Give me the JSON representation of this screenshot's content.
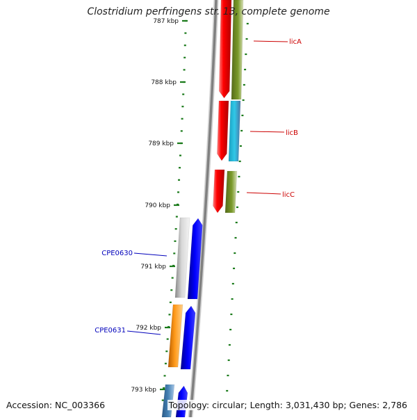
{
  "title": "Clostridium perfringens str. 13, complete genome",
  "footer": {
    "accession": "Accession: NC_003366",
    "summary": "Topology: circular; Length: 3,031,430 bp; Genes: 2,786"
  },
  "scale_labels": [
    "787 kbp",
    "788 kbp",
    "789 kbp",
    "790 kbp",
    "791 kbp",
    "792 kbp",
    "793 kbp"
  ],
  "genes": [
    {
      "name": "licA",
      "color": "#cc0000"
    },
    {
      "name": "licB",
      "color": "#cc0000"
    },
    {
      "name": "licC",
      "color": "#cc0000"
    },
    {
      "name": "CPE0630",
      "color": "#0000bb"
    },
    {
      "name": "CPE0631",
      "color": "#0000bb"
    }
  ],
  "colors": {
    "tick": "#1a7a1a",
    "red_gene": "#ff0000",
    "olive_gene": "#6b8e23",
    "cyan_gene": "#22b8d8",
    "blue_gene": "#0000ff",
    "orange_gene": "#ff9900",
    "steel_gene": "#4682b4",
    "grey_gene": "#bbbbbb",
    "backbone": "#808080"
  }
}
